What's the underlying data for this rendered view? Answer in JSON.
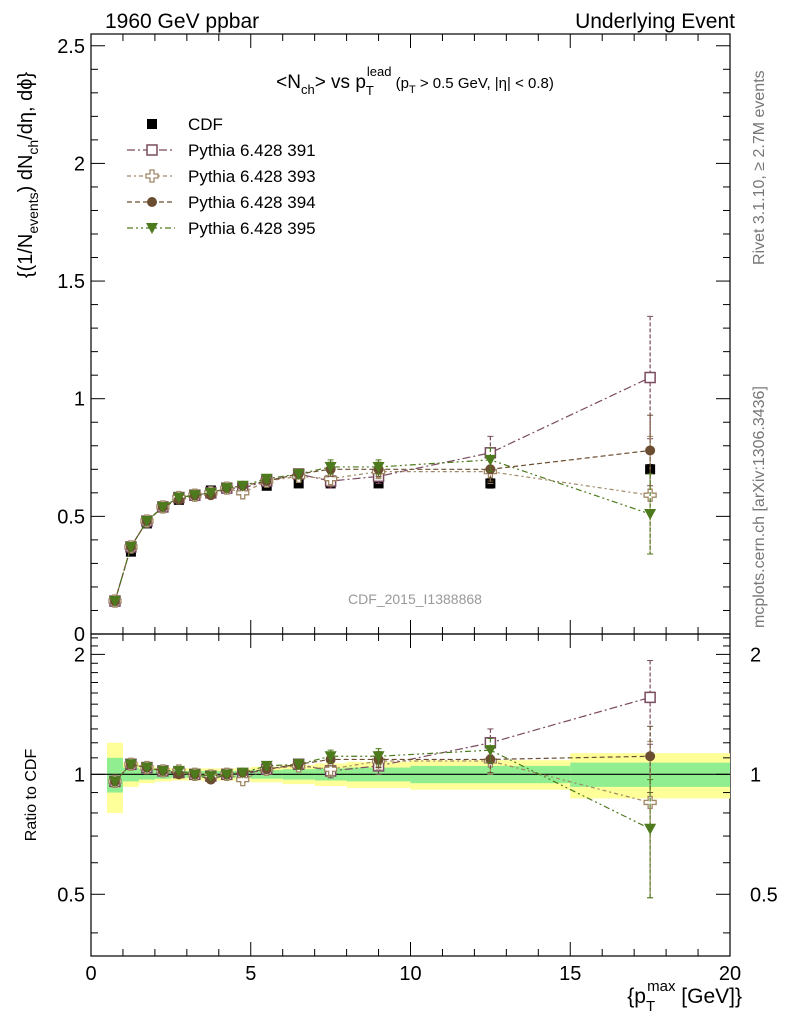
{
  "header": {
    "left_title": "1960 GeV ppbar",
    "right_title": "Underlying Event"
  },
  "side_labels": {
    "rivet": "Rivet 3.1.10, ≥ 2.7M events",
    "mcplots": "mcplots.cern.ch [arXiv:1306.3436]"
  },
  "watermark": "CDF_2015_I1388868",
  "colors": {
    "cdf": "#000000",
    "p391": "#7a4a5e",
    "p393": "#a08866",
    "p394": "#6b4e32",
    "p395": "#4d7a1c",
    "band_inner": "#90ee90",
    "band_outer": "#ffff99"
  },
  "chart_data": [
    {
      "type": "scatter",
      "panel": "main",
      "title": "<N_ch> vs p_T^lead (p_T > 0.5 GeV, |η| < 0.8)",
      "xlabel": "",
      "ylabel": "{(1/N_events) dN_ch/dη, dϕ}",
      "xlim": [
        0,
        20
      ],
      "ylim": [
        0,
        2.55
      ],
      "yticks": [
        "0",
        "0.5",
        "1",
        "1.5",
        "2",
        "2.5"
      ],
      "ytick_values": [
        0,
        0.5,
        1,
        1.5,
        2,
        2.5
      ],
      "legend_position": "top-left",
      "x": [
        0.75,
        1.25,
        1.75,
        2.25,
        2.75,
        3.25,
        3.75,
        4.25,
        4.75,
        5.5,
        6.5,
        7.5,
        9.0,
        12.5,
        17.5
      ],
      "series": [
        {
          "name": "CDF",
          "values": [
            0.14,
            0.35,
            0.47,
            0.54,
            0.57,
            0.59,
            0.61,
            0.62,
            0.62,
            0.63,
            0.64,
            0.64,
            0.64,
            0.64,
            0.7
          ],
          "errors": [
            0.005,
            0.01,
            0.01,
            0.01,
            0.01,
            0.01,
            0.01,
            0.01,
            0.01,
            0.01,
            0.01,
            0.015,
            0.015,
            0.02,
            0.02
          ]
        },
        {
          "name": "Pythia 6.428 391",
          "values": [
            0.14,
            0.37,
            0.48,
            0.54,
            0.58,
            0.59,
            0.6,
            0.62,
            0.62,
            0.65,
            0.68,
            0.65,
            0.67,
            0.77,
            1.09
          ],
          "errors": [
            0.005,
            0.005,
            0.005,
            0.005,
            0.005,
            0.005,
            0.008,
            0.01,
            0.01,
            0.015,
            0.02,
            0.03,
            0.03,
            0.07,
            0.26
          ]
        },
        {
          "name": "Pythia 6.428 393",
          "values": [
            0.14,
            0.37,
            0.48,
            0.54,
            0.58,
            0.59,
            0.6,
            0.62,
            0.6,
            0.65,
            0.67,
            0.66,
            0.69,
            0.69,
            0.59
          ],
          "errors": [
            0.005,
            0.005,
            0.005,
            0.005,
            0.005,
            0.005,
            0.008,
            0.01,
            0.01,
            0.015,
            0.02,
            0.03,
            0.03,
            0.05,
            0.25
          ]
        },
        {
          "name": "Pythia 6.428 394",
          "values": [
            0.14,
            0.37,
            0.48,
            0.54,
            0.57,
            0.59,
            0.59,
            0.62,
            0.63,
            0.65,
            0.68,
            0.7,
            0.7,
            0.7,
            0.78
          ],
          "errors": [
            0.005,
            0.005,
            0.005,
            0.005,
            0.005,
            0.005,
            0.008,
            0.01,
            0.01,
            0.015,
            0.02,
            0.03,
            0.03,
            0.05,
            0.15
          ]
        },
        {
          "name": "Pythia 6.428 395",
          "values": [
            0.14,
            0.37,
            0.48,
            0.54,
            0.58,
            0.59,
            0.6,
            0.62,
            0.63,
            0.66,
            0.68,
            0.71,
            0.71,
            0.74,
            0.51
          ],
          "errors": [
            0.005,
            0.005,
            0.005,
            0.005,
            0.005,
            0.005,
            0.008,
            0.01,
            0.01,
            0.015,
            0.02,
            0.03,
            0.03,
            0.05,
            0.17
          ]
        }
      ]
    },
    {
      "type": "scatter",
      "panel": "ratio",
      "xlabel": "{p_T^max [GeV]}",
      "ylabel": "Ratio to CDF",
      "xlim": [
        0,
        20
      ],
      "ylim": [
        0.35,
        2.25
      ],
      "log_y": true,
      "xticks": [
        "0",
        "5",
        "10",
        "15",
        "20"
      ],
      "xtick_values": [
        0,
        5,
        10,
        15,
        20
      ],
      "yticks": [
        "0.5",
        "1",
        "2"
      ],
      "ytick_values": [
        0.5,
        1,
        2
      ],
      "reference_line": 1,
      "x": [
        0.75,
        1.25,
        1.75,
        2.25,
        2.75,
        3.25,
        3.75,
        4.25,
        4.75,
        5.5,
        6.5,
        7.5,
        9.0,
        12.5,
        17.5
      ],
      "bands": {
        "edges": [
          0.5,
          1.0,
          1.5,
          2.0,
          2.5,
          3.0,
          3.5,
          4.0,
          4.5,
          5.0,
          6.0,
          7.0,
          8.0,
          10.0,
          15.0,
          20.0
        ],
        "inner": [
          0.1,
          0.04,
          0.03,
          0.025,
          0.02,
          0.02,
          0.02,
          0.02,
          0.02,
          0.025,
          0.03,
          0.035,
          0.04,
          0.05,
          0.07
        ],
        "outer": [
          0.2,
          0.07,
          0.05,
          0.04,
          0.035,
          0.035,
          0.035,
          0.035,
          0.035,
          0.045,
          0.055,
          0.065,
          0.075,
          0.085,
          0.13
        ]
      },
      "series": [
        {
          "name": "Pythia 6.428 391",
          "values": [
            0.96,
            1.06,
            1.04,
            1.02,
            1.01,
            1.0,
            0.99,
            1.0,
            1.0,
            1.03,
            1.06,
            1.02,
            1.05,
            1.2,
            1.56
          ],
          "errors": [
            0.02,
            0.02,
            0.01,
            0.01,
            0.01,
            0.01,
            0.01,
            0.01,
            0.015,
            0.02,
            0.03,
            0.04,
            0.05,
            0.1,
            0.37
          ]
        },
        {
          "name": "Pythia 6.428 393",
          "values": [
            0.96,
            1.06,
            1.04,
            1.02,
            1.02,
            1.0,
            0.99,
            1.0,
            0.97,
            1.03,
            1.05,
            1.03,
            1.08,
            1.08,
            0.85
          ],
          "errors": [
            0.02,
            0.02,
            0.01,
            0.01,
            0.01,
            0.01,
            0.01,
            0.01,
            0.015,
            0.02,
            0.03,
            0.04,
            0.05,
            0.08,
            0.36
          ]
        },
        {
          "name": "Pythia 6.428 394",
          "values": [
            0.96,
            1.06,
            1.04,
            1.02,
            1.0,
            1.0,
            0.97,
            1.0,
            1.01,
            1.03,
            1.06,
            1.09,
            1.09,
            1.09,
            1.11
          ],
          "errors": [
            0.02,
            0.02,
            0.01,
            0.01,
            0.01,
            0.01,
            0.01,
            0.01,
            0.015,
            0.02,
            0.03,
            0.04,
            0.05,
            0.08,
            0.21
          ]
        },
        {
          "name": "Pythia 6.428 395",
          "values": [
            0.96,
            1.06,
            1.04,
            1.02,
            1.02,
            1.0,
            0.99,
            1.0,
            1.01,
            1.05,
            1.06,
            1.11,
            1.11,
            1.15,
            0.73
          ],
          "errors": [
            0.02,
            0.02,
            0.01,
            0.01,
            0.01,
            0.01,
            0.01,
            0.01,
            0.015,
            0.02,
            0.03,
            0.04,
            0.05,
            0.08,
            0.24
          ]
        }
      ]
    }
  ]
}
